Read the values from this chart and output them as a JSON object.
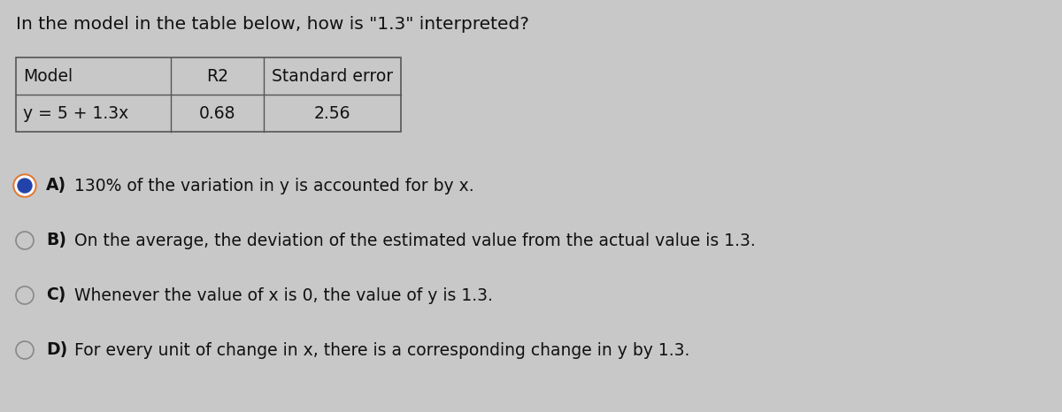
{
  "question": "In the model in the table below, how is \"1.3\" interpreted?",
  "table_headers": [
    "Model",
    "R2",
    "Standard error"
  ],
  "table_row": [
    "y = 5 + 1.3x",
    "0.68",
    "2.56"
  ],
  "options": [
    {
      "label": "A)",
      "text": "130% of the variation in y is accounted for by x.",
      "selected": true
    },
    {
      "label": "B)",
      "text": "On the average, the deviation of the estimated value from the actual value is 1.3.",
      "selected": false
    },
    {
      "label": "C)",
      "text": "Whenever the value of x is 0, the value of y is 1.3.",
      "selected": false
    },
    {
      "label": "D)",
      "text": "For every unit of change in x, there is a corresponding change in y by 1.3.",
      "selected": false
    }
  ],
  "bg_color": "#c8c8c8",
  "table_bg": "#c8c8c8",
  "table_border_color": "#555555",
  "text_color": "#111111",
  "selected_outer_color": "#e07830",
  "selected_inner_color": "#2244aa",
  "unselected_border_color": "#888888",
  "question_fontsize": 14.5,
  "option_fontsize": 13.5,
  "table_fontsize": 13.5
}
